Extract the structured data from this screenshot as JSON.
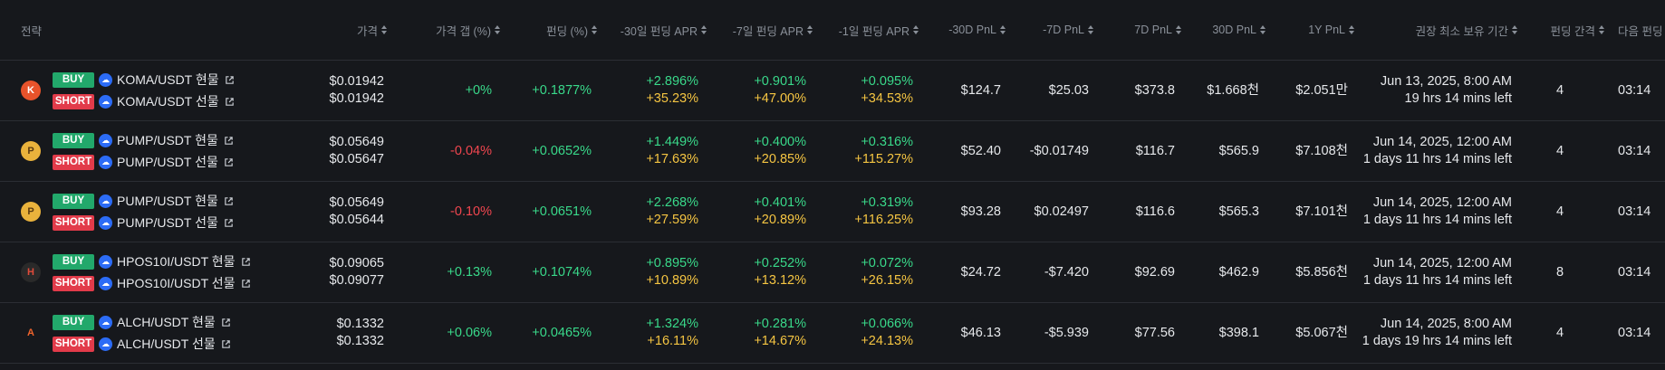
{
  "header": {
    "strategy": "전략",
    "price": "가격",
    "price_gap": "가격 갭 (%)",
    "funding": "펀딩 (%)",
    "apr30": "-30일 펀딩 APR",
    "apr7": "-7일 펀딩 APR",
    "apr1": "-1일 펀딩 APR",
    "pnl30m": "-30D PnL",
    "pnl7m": "-7D PnL",
    "pnl7": "7D PnL",
    "pnl30": "30D PnL",
    "pnl1y": "1Y PnL",
    "hold": "권장 최소 보유 기간",
    "interval": "펀딩 간격",
    "next": "다음 펀딩"
  },
  "buy_label": "BUY",
  "short_label": "SHORT",
  "rows": [
    {
      "coin_icon": "koma-icon",
      "buy_pair": "KOMA/USDT 현물",
      "short_pair": "KOMA/USDT 선물",
      "price_spot": "$0.01942",
      "price_fut": "$0.01942",
      "gap": "+0%",
      "funding": "+0.1877%",
      "apr30_a": "+2.896%",
      "apr30_b": "+35.23%",
      "apr7_a": "+0.901%",
      "apr7_b": "+47.00%",
      "apr1_a": "+0.095%",
      "apr1_b": "+34.53%",
      "pnl30m": "$124.7",
      "pnl7m": "$25.03",
      "pnl7": "$373.8",
      "pnl30": "$1.668천",
      "pnl1y": "$2.051만",
      "hold_date": "Jun 13, 2025, 8:00 AM",
      "hold_left": "19 hrs 14 mins left",
      "interval": "4",
      "next": "03:14"
    },
    {
      "coin_icon": "pump-icon",
      "buy_pair": "PUMP/USDT 현물",
      "short_pair": "PUMP/USDT 선물",
      "price_spot": "$0.05649",
      "price_fut": "$0.05647",
      "gap": "-0.04%",
      "funding": "+0.0652%",
      "apr30_a": "+1.449%",
      "apr30_b": "+17.63%",
      "apr7_a": "+0.400%",
      "apr7_b": "+20.85%",
      "apr1_a": "+0.316%",
      "apr1_b": "+115.27%",
      "pnl30m": "$52.40",
      "pnl7m": "-$0.01749",
      "pnl7": "$116.7",
      "pnl30": "$565.9",
      "pnl1y": "$7.108천",
      "hold_date": "Jun 14, 2025, 12:00 AM",
      "hold_left": "1 days 11 hrs 14 mins left",
      "interval": "4",
      "next": "03:14"
    },
    {
      "coin_icon": "pump-icon",
      "buy_pair": "PUMP/USDT 현물",
      "short_pair": "PUMP/USDT 선물",
      "price_spot": "$0.05649",
      "price_fut": "$0.05644",
      "gap": "-0.10%",
      "funding": "+0.0651%",
      "apr30_a": "+2.268%",
      "apr30_b": "+27.59%",
      "apr7_a": "+0.401%",
      "apr7_b": "+20.89%",
      "apr1_a": "+0.319%",
      "apr1_b": "+116.25%",
      "pnl30m": "$93.28",
      "pnl7m": "$0.02497",
      "pnl7": "$116.6",
      "pnl30": "$565.3",
      "pnl1y": "$7.101천",
      "hold_date": "Jun 14, 2025, 12:00 AM",
      "hold_left": "1 days 11 hrs 14 mins left",
      "interval": "4",
      "next": "03:14"
    },
    {
      "coin_icon": "hpos-icon",
      "buy_pair": "HPOS10I/USDT 현물",
      "short_pair": "HPOS10I/USDT 선물",
      "price_spot": "$0.09065",
      "price_fut": "$0.09077",
      "gap": "+0.13%",
      "funding": "+0.1074%",
      "apr30_a": "+0.895%",
      "apr30_b": "+10.89%",
      "apr7_a": "+0.252%",
      "apr7_b": "+13.12%",
      "apr1_a": "+0.072%",
      "apr1_b": "+26.15%",
      "pnl30m": "$24.72",
      "pnl7m": "-$7.420",
      "pnl7": "$92.69",
      "pnl30": "$462.9",
      "pnl1y": "$5.856천",
      "hold_date": "Jun 14, 2025, 12:00 AM",
      "hold_left": "1 days 11 hrs 14 mins left",
      "interval": "8",
      "next": "03:14"
    },
    {
      "coin_icon": "alch-icon",
      "buy_pair": "ALCH/USDT 현물",
      "short_pair": "ALCH/USDT 선물",
      "price_spot": "$0.1332",
      "price_fut": "$0.1332",
      "gap": "+0.06%",
      "funding": "+0.0465%",
      "apr30_a": "+1.324%",
      "apr30_b": "+16.11%",
      "apr7_a": "+0.281%",
      "apr7_b": "+14.67%",
      "apr1_a": "+0.066%",
      "apr1_b": "+24.13%",
      "pnl30m": "$46.13",
      "pnl7m": "-$5.939",
      "pnl7": "$77.56",
      "pnl30": "$398.1",
      "pnl1y": "$5.067천",
      "hold_date": "Jun 14, 2025, 8:00 AM",
      "hold_left": "1 days 19 hrs 14 mins left",
      "interval": "4",
      "next": "03:14"
    }
  ],
  "colors": {
    "positive": "#39d98a",
    "negative": "#f0464f",
    "apr_highlight": "#f5c542",
    "buy": "#22a86b",
    "short": "#e23b4a"
  }
}
